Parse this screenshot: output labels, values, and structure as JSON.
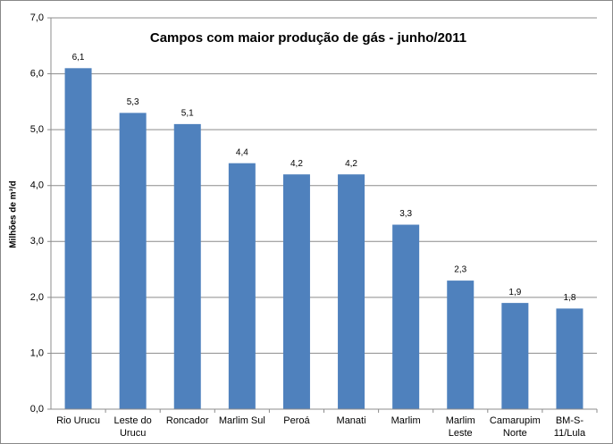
{
  "chart_data": {
    "type": "bar",
    "title": "Campos com maior produção de gás - junho/2011",
    "y_label": "Milhões de m³/d",
    "categories": [
      "Rio Urucu",
      "Leste do Urucu",
      "Roncador",
      "Marlim Sul",
      "Peroá",
      "Manati",
      "Marlim",
      "Marlim Leste",
      "Camarupim Norte",
      "BM-S-11/Lula"
    ],
    "values": [
      6.1,
      5.3,
      5.1,
      4.4,
      4.2,
      4.2,
      3.3,
      2.3,
      1.9,
      1.8
    ],
    "value_labels": [
      "6,1",
      "5,3",
      "5,1",
      "4,4",
      "4,2",
      "4,2",
      "3,3",
      "2,3",
      "1,9",
      "1,8"
    ],
    "color": "#4f81bd",
    "ylim": [
      0,
      7
    ],
    "yticks": [
      {
        "value": 0,
        "label": "0,0"
      },
      {
        "value": 1,
        "label": "1,0"
      },
      {
        "value": 2,
        "label": "2,0"
      },
      {
        "value": 3,
        "label": "3,0"
      },
      {
        "value": 4,
        "label": "4,0"
      },
      {
        "value": 5,
        "label": "5,0"
      },
      {
        "value": 6,
        "label": "6,0"
      },
      {
        "value": 7,
        "label": "7,0"
      }
    ],
    "grid": true
  }
}
